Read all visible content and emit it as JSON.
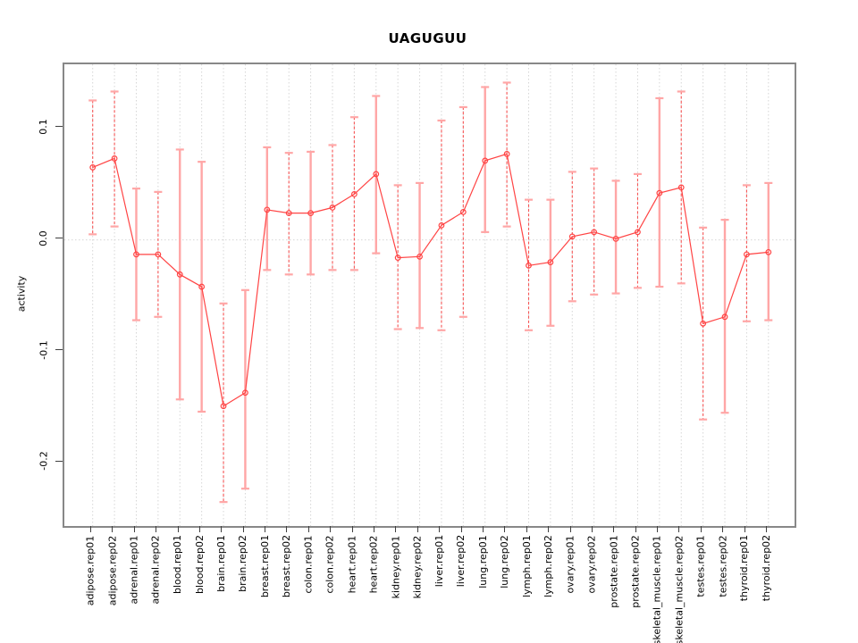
{
  "title": "UAGUGUU",
  "ylabel": "activity",
  "colors": {
    "series_red": "#ff4444",
    "whisker_pink": "#ffa6a6",
    "whisker_dashed_red": "#f75555",
    "grid_gray": "#d6d6d6",
    "box_gray": "#888888",
    "tick_dark": "#404040",
    "text_black": "#000000",
    "background": "#ffffff"
  },
  "chart_data": {
    "type": "line",
    "subtype": "points-with-error-bars",
    "title": "UAGUGUU",
    "xlabel": "",
    "ylabel": "activity",
    "legend": "none",
    "grid": "vertical dotted gridline at every category; horizontal dotted line at y=0 only",
    "marker": "open-circle",
    "ylim": [
      -0.2565,
      0.1574
    ],
    "yticks": [
      0.1,
      0.0,
      -0.1,
      -0.2
    ],
    "ytick_labels": [
      "0.1",
      "0.0",
      "-0.1",
      "-0.2"
    ],
    "categories": [
      "adipose.rep01",
      "adipose.rep02",
      "adrenal.rep01",
      "adrenal.rep02",
      "blood.rep01",
      "blood.rep02",
      "brain.rep01",
      "brain.rep02",
      "breast.rep01",
      "breast.rep02",
      "colon.rep01",
      "colon.rep02",
      "heart.rep01",
      "heart.rep02",
      "kidney.rep01",
      "kidney.rep02",
      "liver.rep01",
      "liver.rep02",
      "lung.rep01",
      "lung.rep02",
      "lymph.rep01",
      "lymph.rep02",
      "ovary.rep01",
      "ovary.rep02",
      "prostate.rep01",
      "prostate.rep02",
      "skeletal_muscle.rep01",
      "skeletal_muscle.rep02",
      "testes.rep01",
      "testes.rep02",
      "thyroid.rep01",
      "thyroid.rep02"
    ],
    "series": [
      {
        "name": "activity",
        "values": [
          0.065,
          0.073,
          -0.013,
          -0.013,
          -0.031,
          -0.042,
          -0.149,
          -0.137,
          0.027,
          0.024,
          0.024,
          0.029,
          0.041,
          0.059,
          -0.016,
          -0.015,
          0.013,
          0.025,
          0.071,
          0.077,
          -0.023,
          -0.02,
          0.003,
          0.007,
          0.001,
          0.007,
          0.042,
          0.047,
          -0.075,
          -0.069,
          -0.013,
          -0.011
        ]
      }
    ],
    "error_high": [
      0.125,
      0.133,
      0.046,
      0.043,
      0.081,
      0.07,
      -0.057,
      -0.045,
      0.083,
      0.078,
      0.079,
      0.085,
      0.11,
      0.129,
      0.049,
      0.051,
      0.107,
      0.119,
      0.137,
      0.141,
      0.036,
      0.036,
      0.061,
      0.064,
      0.053,
      0.059,
      0.127,
      0.133,
      0.011,
      0.018,
      0.049,
      0.051
    ],
    "error_low": [
      0.005,
      0.012,
      -0.072,
      -0.069,
      -0.143,
      -0.154,
      -0.235,
      -0.223,
      -0.027,
      -0.031,
      -0.031,
      -0.027,
      -0.027,
      -0.012,
      -0.08,
      -0.079,
      -0.081,
      -0.069,
      0.007,
      0.012,
      -0.081,
      -0.077,
      -0.055,
      -0.049,
      -0.048,
      -0.043,
      -0.042,
      -0.039,
      -0.161,
      -0.155,
      -0.073,
      -0.072
    ],
    "stem_styles": [
      "dashed",
      "dashed",
      "solid",
      "dashed",
      "solid",
      "solid",
      "dashed",
      "solid",
      "solid",
      "dashed",
      "solid",
      "dashed",
      "dashed",
      "solid",
      "dashed",
      "solid",
      "dashed",
      "dashed",
      "solid",
      "dashed",
      "dashed",
      "solid",
      "dashed",
      "dashed",
      "solid",
      "dashed",
      "solid",
      "dashed",
      "dashed",
      "solid",
      "dashed",
      "solid"
    ]
  }
}
